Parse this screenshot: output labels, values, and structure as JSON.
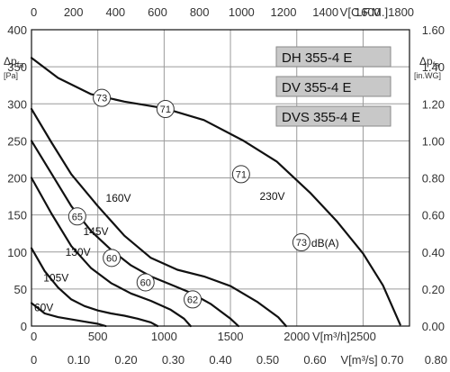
{
  "chart_data": {
    "type": "line",
    "models": [
      "DH 355-4 E",
      "DV 355-4 E",
      "DVS 355-4 E"
    ],
    "axes": {
      "x_bottom": {
        "label": "V[m³/h]",
        "range": [
          0,
          2850
        ],
        "ticks": [
          0,
          500,
          1000,
          1500,
          2000,
          2500
        ],
        "tick_labels": [
          "0",
          "500",
          "1000",
          "1500",
          "2000",
          "2500"
        ]
      },
      "x_bottom_secondary": {
        "label": "V[m³/s]",
        "ticks": [
          0,
          0.1,
          0.2,
          0.3,
          0.4,
          0.5,
          0.6,
          0.7,
          0.8
        ],
        "tick_labels": [
          "0",
          "0.10",
          "0.20",
          "0.30",
          "0.40",
          "0.50",
          "0.60",
          "0.70",
          "0.80"
        ]
      },
      "x_top": {
        "label": "V[C.F.M.]",
        "range": [
          0,
          1800
        ],
        "ticks": [
          0,
          200,
          400,
          600,
          800,
          1000,
          1200,
          1400,
          1600,
          1800
        ],
        "tick_labels": [
          "0",
          "200",
          "400",
          "600",
          "800",
          "1000",
          "1200",
          "1400",
          "1600",
          "1800"
        ]
      },
      "y_left": {
        "label_main": "Δp",
        "label_sub": "fa",
        "unit": "[Pa]",
        "range": [
          0,
          400
        ],
        "ticks": [
          0,
          50,
          100,
          150,
          200,
          250,
          300,
          350,
          400
        ],
        "tick_labels": [
          "0",
          "50",
          "100",
          "150",
          "200",
          "250",
          "300",
          "350",
          "400"
        ]
      },
      "y_right": {
        "label_main": "Δp",
        "label_sub": "fa",
        "unit": "[in.WG]",
        "range": [
          0,
          1.6
        ],
        "ticks": [
          0,
          0.2,
          0.4,
          0.6,
          0.8,
          1.0,
          1.2,
          1.4,
          1.6
        ],
        "tick_labels": [
          "0.00",
          "0.20",
          "0.40",
          "0.60",
          "0.80",
          "1.00",
          "1.20",
          "1.40",
          "1.60"
        ]
      }
    },
    "grid": true,
    "series": [
      {
        "name": "230V",
        "x": [
          0,
          200,
          450,
          700,
          1000,
          1300,
          1600,
          1850,
          2100,
          2300,
          2500,
          2650,
          2780
        ],
        "y": [
          362,
          335,
          313,
          303,
          294,
          278,
          250,
          222,
          180,
          142,
          98,
          55,
          2
        ]
      },
      {
        "name": "160V",
        "x": [
          0,
          150,
          300,
          500,
          700,
          900,
          1100,
          1300,
          1500,
          1700,
          1860,
          1920
        ],
        "y": [
          293,
          248,
          205,
          162,
          122,
          92,
          76,
          67,
          54,
          33,
          12,
          0
        ]
      },
      {
        "name": "145V",
        "x": [
          0,
          150,
          300,
          450,
          600,
          750,
          900,
          1050,
          1200,
          1350,
          1500,
          1560
        ],
        "y": [
          250,
          206,
          162,
          128,
          103,
          82,
          67,
          56,
          45,
          30,
          10,
          0
        ]
      },
      {
        "name": "130V",
        "x": [
          0,
          150,
          300,
          450,
          600,
          750,
          900,
          1050,
          1150,
          1200
        ],
        "y": [
          200,
          152,
          108,
          78,
          58,
          44,
          34,
          22,
          10,
          0
        ]
      },
      {
        "name": "105V",
        "x": [
          0,
          100,
          200,
          300,
          400,
          500,
          600,
          700,
          800,
          900,
          950
        ],
        "y": [
          105,
          74,
          52,
          36,
          27,
          21,
          17,
          14,
          10,
          5,
          0
        ]
      },
      {
        "name": "60V",
        "x": [
          0,
          100,
          200,
          300,
          400,
          500,
          560
        ],
        "y": [
          31,
          17,
          12,
          9,
          6,
          3,
          0
        ]
      }
    ],
    "sound_levels": [
      {
        "text": "73",
        "x": 530,
        "y": 308
      },
      {
        "text": "71",
        "x": 1010,
        "y": 293
      },
      {
        "text": "71",
        "x": 1580,
        "y": 205
      },
      {
        "text": "73",
        "x": 2035,
        "y": 113,
        "unit": "dB(A)"
      },
      {
        "text": "65",
        "x": 345,
        "y": 148
      },
      {
        "text": "60",
        "x": 605,
        "y": 92
      },
      {
        "text": "60",
        "x": 860,
        "y": 59
      },
      {
        "text": "62",
        "x": 1215,
        "y": 36
      }
    ],
    "series_labels": [
      {
        "text": "230V",
        "x": 1720,
        "y": 170
      },
      {
        "text": "160V",
        "x": 560,
        "y": 168
      },
      {
        "text": "145V",
        "x": 390,
        "y": 123
      },
      {
        "text": "130V",
        "x": 255,
        "y": 95
      },
      {
        "text": "105V",
        "x": 90,
        "y": 60
      },
      {
        "text": "60V",
        "x": 20,
        "y": 20
      }
    ]
  }
}
